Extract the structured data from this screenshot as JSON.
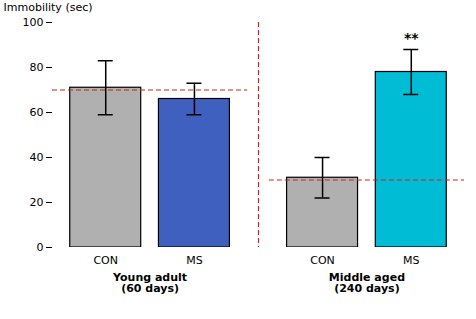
{
  "chart_data": {
    "type": "bar",
    "categories": [
      "CON",
      "MS",
      "CON",
      "MS"
    ],
    "groups": [
      "Young adult\n(60 days)",
      "Young adult\n(60 days)",
      "Middle aged\n(240 days)",
      "Middle aged\n(240 days)"
    ],
    "values": [
      71,
      66,
      31,
      78
    ],
    "errors": [
      12,
      7,
      9,
      10
    ],
    "colors": [
      "#b0b0b0",
      "#4060c0",
      "#b0b0b0",
      "#00bcd4"
    ],
    "ylabel": "Immobility (sec)",
    "ylim": [
      0,
      100
    ],
    "yticks": [
      0,
      20,
      40,
      60,
      80,
      100
    ],
    "grid": false,
    "reference_lines": [
      {
        "group": "Young adult\n(60 days)",
        "value": 70,
        "color": "#cc2222"
      },
      {
        "group": "Middle aged\n(240 days)",
        "value": 30,
        "color": "#cc2222"
      }
    ],
    "annotations": [
      {
        "text": "**",
        "category_index": 3,
        "y": 91
      }
    ]
  }
}
